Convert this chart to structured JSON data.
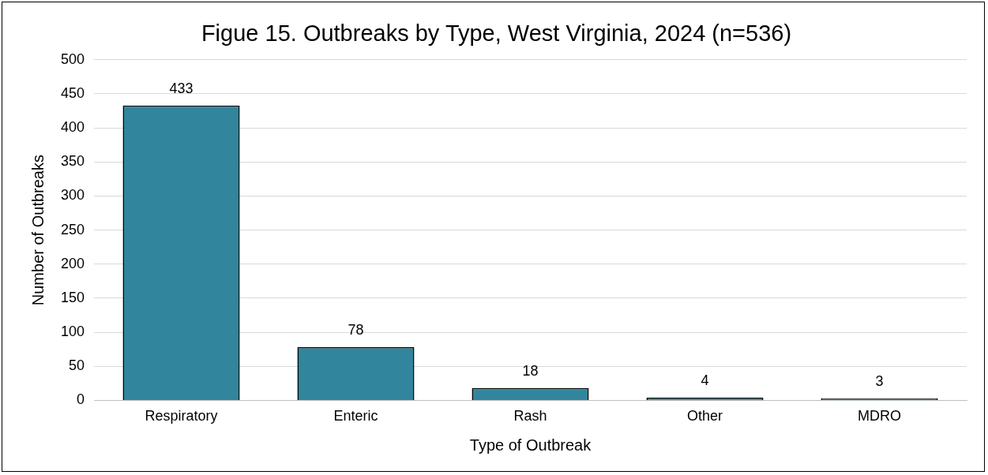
{
  "chart_data": {
    "type": "bar",
    "title": "Figue 15. Outbreaks by Type, West Virginia, 2024 (n=536)",
    "xlabel": "Type of Outbreak",
    "ylabel": "Number of Outbreaks",
    "categories": [
      "Respiratory",
      "Enteric",
      "Rash",
      "Other",
      "MDRO"
    ],
    "values": [
      433,
      78,
      18,
      4,
      3
    ],
    "color": "#31859c",
    "ylim": [
      0,
      500
    ],
    "yticks": [
      0,
      50,
      100,
      150,
      200,
      250,
      300,
      350,
      400,
      450,
      500
    ],
    "grid": "y",
    "data_labels": true
  }
}
